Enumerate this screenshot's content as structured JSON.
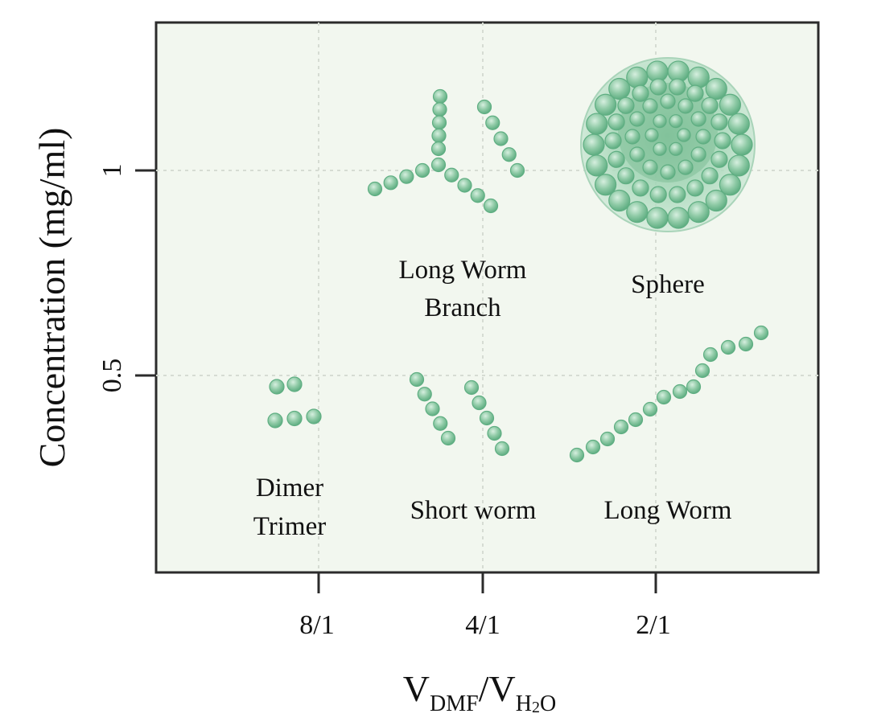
{
  "axes": {
    "x_ticks": [
      "8/1",
      "4/1",
      "2/1"
    ],
    "y_ticks": [
      "0.5",
      "1"
    ],
    "y_title": "Concentration (mg/ml)",
    "x_title": {
      "v1": "V",
      "sub1": "DMF",
      "slash": "/",
      "v2": "V",
      "sub2a": "H",
      "sub2b": "2",
      "sub2c": "O"
    }
  },
  "regions": {
    "dimer_line1": "Dimer",
    "dimer_line2": "Trimer",
    "short_worm": "Short worm",
    "long_worm": "Long Worm",
    "branch_line1": "Long Worm",
    "branch_line2": "Branch",
    "sphere": "Sphere"
  },
  "colors": {
    "plot_bg": "#f2f7ef",
    "bead_fill": "#8fcaa6",
    "bead_stroke": "#5fae82",
    "pink_tip": "#f4c6cc",
    "grid": "#d6dcd3",
    "frame": "#2b2b2b"
  }
}
